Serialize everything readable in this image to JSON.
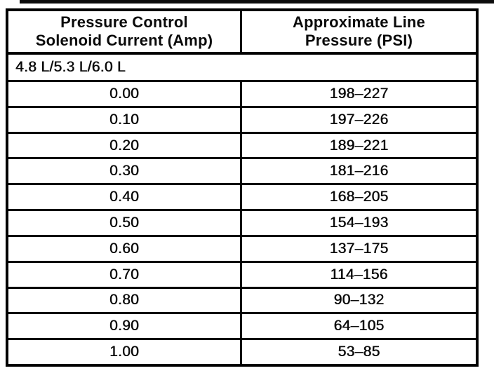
{
  "table": {
    "header": {
      "col1_line1": "Pressure Control",
      "col1_line2": "Solenoid Current (Amp)",
      "col2_line1": "Approximate Line",
      "col2_line2": "Pressure (PSI)"
    },
    "engine_label": "4.8 L/5.3 L/6.0 L",
    "rows": [
      {
        "current": "0.00",
        "pressure": "198–227"
      },
      {
        "current": "0.10",
        "pressure": "197–226"
      },
      {
        "current": "0.20",
        "pressure": "189–221"
      },
      {
        "current": "0.30",
        "pressure": "181–216"
      },
      {
        "current": "0.40",
        "pressure": "168–205"
      },
      {
        "current": "0.50",
        "pressure": "154–193"
      },
      {
        "current": "0.60",
        "pressure": "137–175"
      },
      {
        "current": "0.70",
        "pressure": "114–156"
      },
      {
        "current": "0.80",
        "pressure": "90–132"
      },
      {
        "current": "0.90",
        "pressure": "64–105"
      },
      {
        "current": "1.00",
        "pressure": "53–85"
      }
    ]
  }
}
